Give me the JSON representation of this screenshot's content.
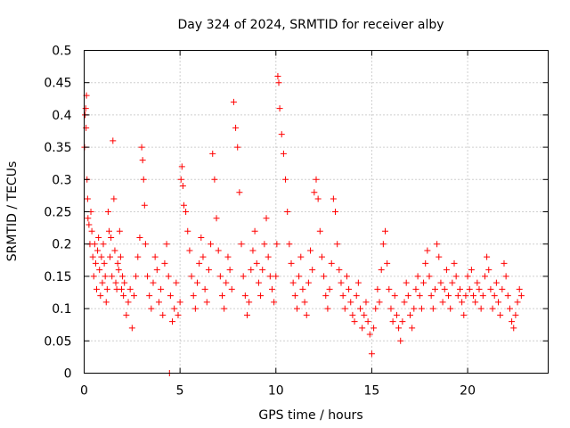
{
  "chart_data": {
    "type": "scatter",
    "title": "Day 324 of 2024, SRMTID for receiver alby",
    "xlabel": "GPS time / hours",
    "ylabel": "SRMTID / TECUs",
    "xlim": [
      0,
      24.2
    ],
    "ylim": [
      0,
      0.5
    ],
    "xticks": [
      0,
      5,
      10,
      15,
      20
    ],
    "xtick_labels": [
      "0",
      "5",
      "10",
      "15",
      "20"
    ],
    "yticks": [
      0,
      0.05,
      0.1,
      0.15,
      0.2,
      0.25,
      0.3,
      0.35,
      0.4,
      0.45,
      0.5
    ],
    "ytick_labels": [
      "0",
      "0.05",
      "0.1",
      "0.15",
      "0.2",
      "0.25",
      "0.3",
      "0.35",
      "0.4",
      "0.45",
      "0.5"
    ],
    "grid": true,
    "marker": "+",
    "color": "#ff0000",
    "series": [
      {
        "name": "SRMTID",
        "x": [
          0.02,
          0.05,
          0.08,
          0.1,
          0.12,
          0.15,
          0.18,
          0.2,
          0.25,
          0.3,
          0.35,
          0.4,
          0.45,
          0.5,
          0.55,
          0.6,
          0.65,
          0.7,
          0.75,
          0.8,
          0.85,
          0.9,
          0.95,
          1.0,
          1.05,
          1.1,
          1.15,
          1.2,
          1.25,
          1.3,
          1.35,
          1.4,
          1.45,
          1.5,
          1.55,
          1.6,
          1.65,
          1.7,
          1.75,
          1.8,
          1.85,
          1.9,
          1.95,
          2.0,
          2.05,
          2.1,
          2.2,
          2.3,
          2.4,
          2.5,
          2.6,
          2.7,
          2.8,
          2.9,
          3.0,
          3.05,
          3.1,
          3.15,
          3.2,
          3.3,
          3.4,
          3.5,
          3.6,
          3.7,
          3.8,
          3.9,
          4.0,
          4.1,
          4.2,
          4.3,
          4.4,
          4.5,
          4.6,
          4.7,
          4.8,
          4.9,
          5.0,
          5.05,
          5.1,
          5.15,
          5.2,
          5.3,
          5.4,
          5.5,
          5.6,
          5.7,
          5.8,
          5.9,
          6.0,
          6.1,
          6.2,
          6.3,
          6.4,
          6.5,
          6.6,
          6.7,
          6.8,
          6.9,
          7.0,
          7.1,
          7.2,
          7.3,
          7.4,
          7.5,
          7.6,
          7.7,
          7.8,
          7.9,
          8.0,
          8.1,
          8.2,
          8.3,
          8.4,
          8.5,
          8.6,
          8.7,
          8.8,
          8.9,
          9.0,
          9.1,
          9.2,
          9.3,
          9.4,
          9.5,
          9.6,
          9.7,
          9.8,
          9.9,
          10.0,
          10.05,
          10.1,
          10.15,
          10.2,
          10.3,
          10.4,
          10.5,
          10.6,
          10.7,
          10.8,
          10.9,
          11.0,
          11.1,
          11.2,
          11.3,
          11.4,
          11.5,
          11.6,
          11.7,
          11.8,
          11.9,
          12.0,
          12.1,
          12.2,
          12.3,
          12.4,
          12.5,
          12.6,
          12.7,
          12.8,
          12.9,
          13.0,
          13.1,
          13.2,
          13.3,
          13.4,
          13.5,
          13.6,
          13.7,
          13.8,
          13.9,
          14.0,
          14.1,
          14.2,
          14.3,
          14.4,
          14.5,
          14.6,
          14.7,
          14.8,
          14.9,
          15.0,
          15.1,
          15.2,
          15.3,
          15.4,
          15.5,
          15.6,
          15.7,
          15.8,
          15.9,
          16.0,
          16.1,
          16.2,
          16.3,
          16.4,
          16.5,
          16.6,
          16.7,
          16.8,
          16.9,
          17.0,
          17.1,
          17.2,
          17.3,
          17.4,
          17.5,
          17.6,
          17.7,
          17.8,
          17.9,
          18.0,
          18.1,
          18.2,
          18.3,
          18.4,
          18.5,
          18.6,
          18.7,
          18.8,
          18.9,
          19.0,
          19.1,
          19.2,
          19.3,
          19.4,
          19.5,
          19.6,
          19.7,
          19.8,
          19.9,
          20.0,
          20.1,
          20.2,
          20.3,
          20.4,
          20.5,
          20.6,
          20.7,
          20.8,
          20.9,
          21.0,
          21.1,
          21.2,
          21.3,
          21.4,
          21.5,
          21.6,
          21.7,
          21.8,
          21.9,
          22.0,
          22.1,
          22.2,
          22.3,
          22.4,
          22.5,
          22.6,
          22.7,
          22.8,
          4.45
        ],
        "y": [
          0.35,
          0.4,
          0.41,
          0.38,
          0.43,
          0.3,
          0.27,
          0.24,
          0.23,
          0.2,
          0.25,
          0.22,
          0.18,
          0.15,
          0.2,
          0.17,
          0.13,
          0.19,
          0.21,
          0.16,
          0.12,
          0.18,
          0.14,
          0.2,
          0.17,
          0.15,
          0.11,
          0.13,
          0.25,
          0.22,
          0.18,
          0.21,
          0.15,
          0.36,
          0.27,
          0.19,
          0.14,
          0.13,
          0.17,
          0.16,
          0.22,
          0.18,
          0.13,
          0.15,
          0.12,
          0.14,
          0.09,
          0.11,
          0.13,
          0.07,
          0.12,
          0.15,
          0.18,
          0.21,
          0.35,
          0.33,
          0.3,
          0.26,
          0.2,
          0.15,
          0.12,
          0.1,
          0.14,
          0.18,
          0.16,
          0.11,
          0.13,
          0.09,
          0.17,
          0.2,
          0.15,
          0.12,
          0.08,
          0.1,
          0.14,
          0.09,
          0.11,
          0.3,
          0.32,
          0.29,
          0.26,
          0.25,
          0.22,
          0.19,
          0.15,
          0.12,
          0.1,
          0.14,
          0.17,
          0.21,
          0.18,
          0.13,
          0.11,
          0.16,
          0.2,
          0.34,
          0.3,
          0.24,
          0.19,
          0.15,
          0.12,
          0.1,
          0.14,
          0.18,
          0.16,
          0.13,
          0.42,
          0.38,
          0.35,
          0.28,
          0.2,
          0.15,
          0.12,
          0.09,
          0.11,
          0.16,
          0.19,
          0.22,
          0.17,
          0.14,
          0.12,
          0.16,
          0.2,
          0.24,
          0.18,
          0.15,
          0.13,
          0.11,
          0.15,
          0.2,
          0.46,
          0.45,
          0.41,
          0.37,
          0.34,
          0.3,
          0.25,
          0.2,
          0.17,
          0.14,
          0.12,
          0.1,
          0.15,
          0.18,
          0.13,
          0.11,
          0.09,
          0.14,
          0.19,
          0.16,
          0.28,
          0.3,
          0.27,
          0.22,
          0.18,
          0.15,
          0.12,
          0.1,
          0.13,
          0.17,
          0.27,
          0.25,
          0.2,
          0.16,
          0.14,
          0.12,
          0.1,
          0.15,
          0.13,
          0.11,
          0.09,
          0.08,
          0.12,
          0.14,
          0.1,
          0.07,
          0.09,
          0.11,
          0.08,
          0.06,
          0.03,
          0.07,
          0.1,
          0.13,
          0.11,
          0.16,
          0.2,
          0.22,
          0.17,
          0.13,
          0.1,
          0.08,
          0.12,
          0.09,
          0.07,
          0.05,
          0.08,
          0.11,
          0.14,
          0.12,
          0.09,
          0.07,
          0.1,
          0.13,
          0.15,
          0.12,
          0.1,
          0.14,
          0.17,
          0.19,
          0.15,
          0.12,
          0.1,
          0.13,
          0.2,
          0.18,
          0.14,
          0.11,
          0.13,
          0.16,
          0.12,
          0.1,
          0.14,
          0.17,
          0.15,
          0.12,
          0.13,
          0.11,
          0.09,
          0.12,
          0.15,
          0.13,
          0.16,
          0.12,
          0.11,
          0.14,
          0.13,
          0.1,
          0.12,
          0.15,
          0.18,
          0.16,
          0.13,
          0.1,
          0.12,
          0.14,
          0.11,
          0.09,
          0.13,
          0.17,
          0.15,
          0.12,
          0.1,
          0.08,
          0.07,
          0.09,
          0.11,
          0.13,
          0.12,
          0.0
        ]
      }
    ]
  }
}
